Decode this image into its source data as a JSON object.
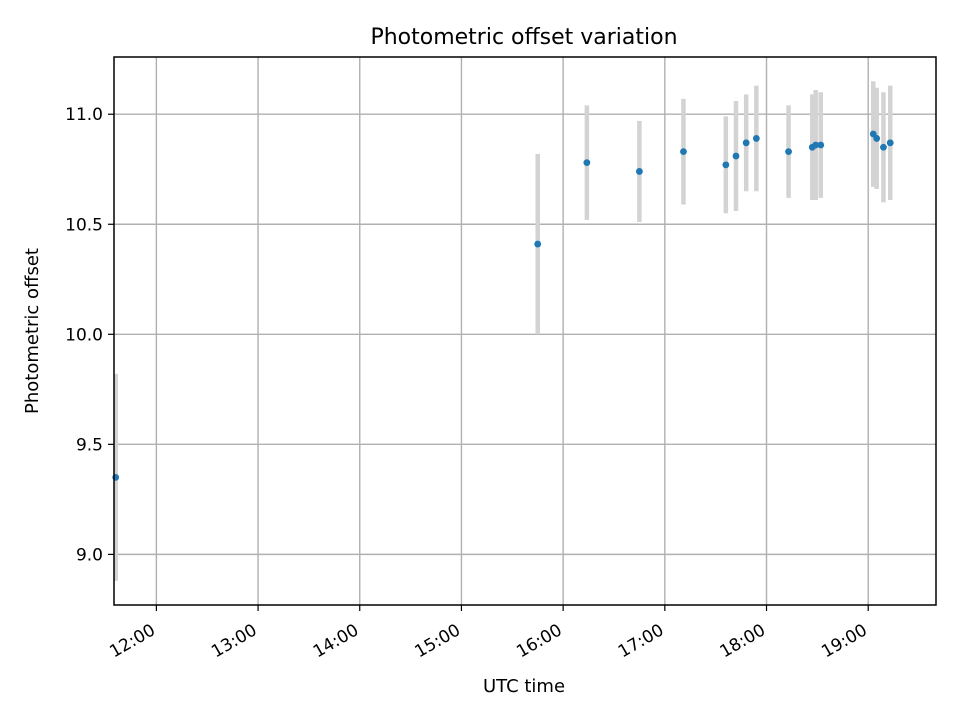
{
  "chart_data": {
    "type": "scatter",
    "title": "Photometric offset variation",
    "xlabel": "UTC time",
    "ylabel": "Photometric offset",
    "grid": true,
    "xlim": [
      "11:35",
      "19:40"
    ],
    "ylim": [
      8.77,
      11.26
    ],
    "x_ticks": [
      "12:00",
      "13:00",
      "14:00",
      "15:00",
      "16:00",
      "17:00",
      "18:00",
      "19:00"
    ],
    "y_ticks": [
      "9.0",
      "9.5",
      "10.0",
      "10.5",
      "11.0"
    ],
    "colors": {
      "marker": "#1f77b4",
      "errorbar": "#d3d3d3"
    },
    "points": [
      {
        "time": "11:36",
        "y": 9.35,
        "err": 0.47
      },
      {
        "time": "15:45",
        "y": 10.41,
        "err": 0.41
      },
      {
        "time": "16:14",
        "y": 10.78,
        "err": 0.26
      },
      {
        "time": "16:45",
        "y": 10.74,
        "err": 0.23
      },
      {
        "time": "17:11",
        "y": 10.83,
        "err": 0.24
      },
      {
        "time": "17:36",
        "y": 10.77,
        "err": 0.22
      },
      {
        "time": "17:42",
        "y": 10.81,
        "err": 0.25
      },
      {
        "time": "17:48",
        "y": 10.87,
        "err": 0.22
      },
      {
        "time": "17:54",
        "y": 10.89,
        "err": 0.24
      },
      {
        "time": "18:13",
        "y": 10.83,
        "err": 0.21
      },
      {
        "time": "18:27",
        "y": 10.85,
        "err": 0.24
      },
      {
        "time": "18:29",
        "y": 10.86,
        "err": 0.25
      },
      {
        "time": "18:32",
        "y": 10.86,
        "err": 0.24
      },
      {
        "time": "19:03",
        "y": 10.91,
        "err": 0.24
      },
      {
        "time": "19:05",
        "y": 10.89,
        "err": 0.23
      },
      {
        "time": "19:09",
        "y": 10.85,
        "err": 0.25
      },
      {
        "time": "19:13",
        "y": 10.87,
        "err": 0.26
      }
    ]
  }
}
